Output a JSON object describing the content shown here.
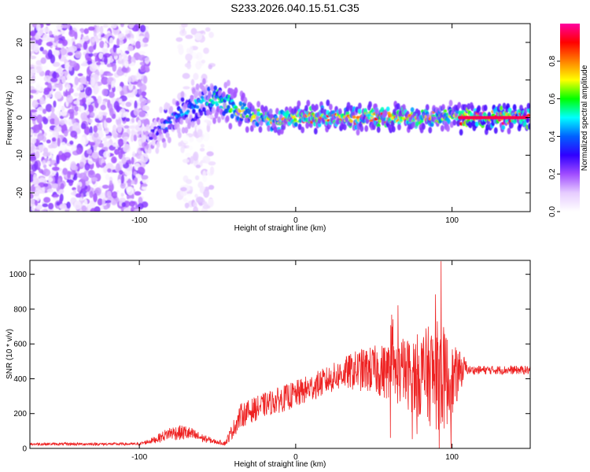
{
  "figure_title": "S233.2026.040.15.51.C35",
  "chart_data": [
    {
      "type": "heatmap",
      "xlabel": "Height of straight line (km)",
      "ylabel": "Frequency (Hz)",
      "xlim": [
        -170,
        150
      ],
      "ylim": [
        -25,
        25
      ],
      "xticks": [
        -100,
        0,
        100
      ],
      "yticks": [
        -20,
        -10,
        0,
        10,
        20
      ],
      "colorbar": {
        "label": "Normalized spectral amplitude",
        "range": [
          0,
          1
        ],
        "ticks": [
          0.0,
          0.2,
          0.4,
          0.6,
          0.8
        ],
        "colors": [
          "#ffffff",
          "#e6ccff",
          "#a04cff",
          "#3000ff",
          "#0060ff",
          "#00ffff",
          "#00ff00",
          "#ffff00",
          "#ff8000",
          "#ff0000",
          "#ff00a0"
        ]
      },
      "ridge": {
        "x": [
          -100,
          -90,
          -80,
          -70,
          -60,
          -55,
          -50,
          -45,
          -40,
          -35,
          -30,
          -20,
          -10,
          0,
          20,
          40,
          60,
          80,
          95,
          100,
          105,
          110,
          150
        ],
        "y": [
          -7,
          -4,
          -1,
          2,
          4,
          5,
          5,
          4,
          3,
          2,
          1,
          0,
          -1,
          0,
          0,
          0,
          0,
          0,
          0,
          1,
          0,
          0,
          0
        ],
        "amp": [
          0.15,
          0.3,
          0.4,
          0.45,
          0.5,
          0.55,
          0.6,
          0.6,
          0.6,
          0.7,
          0.65,
          0.7,
          0.75,
          0.8,
          0.85,
          0.8,
          0.85,
          0.8,
          0.7,
          0.6,
          0.9,
          0.95,
          0.95
        ]
      }
    },
    {
      "type": "line",
      "xlabel": "Height of straight line (km)",
      "ylabel": "SNR (10 * v/v)",
      "xlim": [
        -170,
        150
      ],
      "ylim": [
        0,
        1080
      ],
      "xticks": [
        -100,
        0,
        100
      ],
      "yticks": [
        0,
        200,
        400,
        600,
        800,
        1000
      ],
      "color": "#ee2222",
      "envelope_x": [
        -170,
        -100,
        -90,
        -80,
        -70,
        -60,
        -50,
        -45,
        -40,
        -35,
        -20,
        0,
        20,
        30,
        40,
        50,
        60,
        70,
        80,
        90,
        95,
        100,
        108,
        110,
        150
      ],
      "envelope_y": [
        25,
        25,
        50,
        90,
        90,
        60,
        35,
        30,
        110,
        190,
        250,
        310,
        390,
        430,
        450,
        450,
        440,
        430,
        420,
        420,
        400,
        380,
        470,
        450,
        450
      ],
      "envelope_amp": [
        8,
        8,
        20,
        40,
        45,
        25,
        10,
        15,
        50,
        70,
        70,
        80,
        80,
        90,
        120,
        140,
        170,
        200,
        250,
        320,
        300,
        220,
        60,
        25,
        25
      ],
      "peak_max": 1075
    }
  ]
}
